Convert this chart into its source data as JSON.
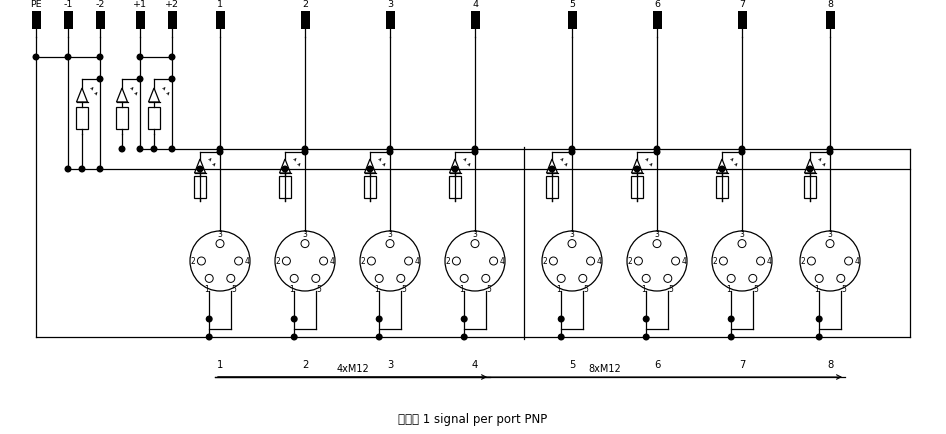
{
  "subtitle": "单通道 1 signal per port PNP",
  "figsize": [
    9.46,
    4.35
  ],
  "dpi": 100,
  "top_labels": [
    "PE",
    "-1",
    "-2",
    "+1",
    "+2",
    "1",
    "2",
    "3",
    "4",
    "5",
    "6",
    "7",
    "8"
  ],
  "bottom_labels": [
    "1",
    "2",
    "3",
    "4",
    "5",
    "6",
    "7",
    "8"
  ],
  "label_4xM12": "4xM12",
  "label_8xM12": "8xM12",
  "xPE": 36,
  "xm1": 68,
  "xm2": 100,
  "xp1": 140,
  "xp2": 172,
  "ch_x": [
    220,
    305,
    390,
    475,
    572,
    657,
    742,
    830
  ],
  "xRight": 910,
  "yPinTop": 12,
  "yPinBot": 30,
  "yH0": 58,
  "yLedBranchTop": 80,
  "yLedMid": 96,
  "yResTop": 110,
  "yResBot": 135,
  "yBusPlus": 150,
  "yBusGnd": 170,
  "yCHledBranchY": 153,
  "yCHledMid": 167,
  "yCHresTop": 179,
  "yCHresBot": 202,
  "yConnTop": 215,
  "yConnCY": 262,
  "rConn": 30,
  "yBusBotInner": 320,
  "yBusBot": 338,
  "yBotLbl": 360,
  "yArrow": 378,
  "yCaption": 420
}
